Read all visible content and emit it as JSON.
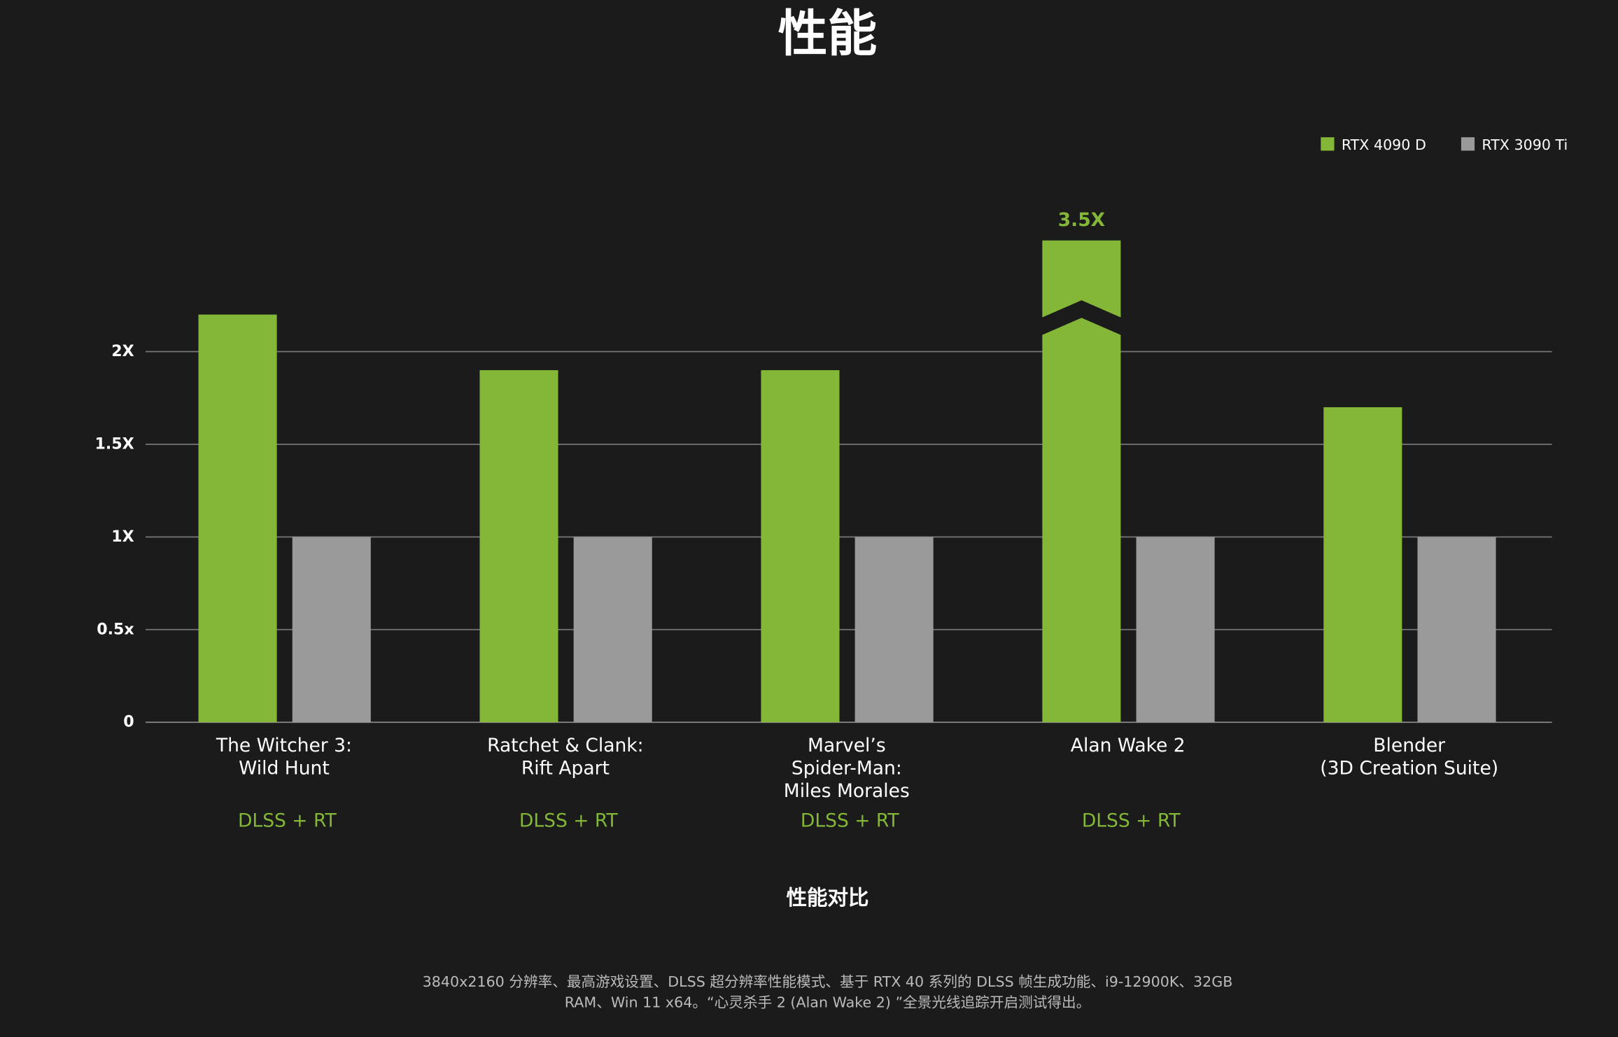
{
  "chart_data": {
    "type": "bar",
    "title": "性能",
    "x_label": "性能对比",
    "footnote": [
      "3840x2160 分辨率、最高游戏设置、DLSS 超分辨率性能模式、基于 RTX 40 系列的 DLSS 帧生成功能、i9-12900K、32GB",
      "RAM、Win 11 x64。“心灵杀手 2 (Alan Wake 2) ”全景光线追踪开启测试得出。"
    ],
    "categories": [
      "The Witcher 3:\nWild Hunt",
      "Ratchet & Clank:\nRift Apart",
      "Marvel’s\nSpider-Man:\nMiles Morales",
      "Alan Wake 2",
      "Blender\n(3D Creation Suite)"
    ],
    "category_notes": [
      "DLSS + RT",
      "DLSS + RT",
      "DLSS + RT",
      "DLSS + RT",
      null
    ],
    "series": [
      {
        "name": "RTX 4090 D",
        "color": "#84b737",
        "values": [
          2.2,
          1.9,
          1.9,
          3.5,
          1.7
        ],
        "value_labels": [
          null,
          null,
          null,
          "3.5X",
          null
        ]
      },
      {
        "name": "RTX 3090 Ti",
        "color": "#9a9a9a",
        "values": [
          1,
          1,
          1,
          1,
          1
        ]
      }
    ],
    "ylim": [
      0,
      2.6
    ],
    "yticks": [
      0,
      {
        "value": 0.5,
        "label": "0.5x"
      },
      {
        "value": 1,
        "label": "1X"
      },
      {
        "value": 1.5,
        "label": "1.5X"
      },
      {
        "value": 2,
        "label": "2X"
      }
    ],
    "grid": true,
    "legend": "top-right",
    "axis_break": true
  }
}
